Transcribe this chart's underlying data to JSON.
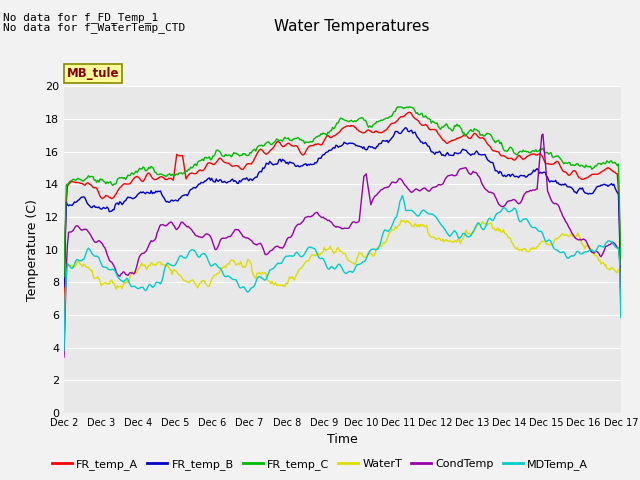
{
  "title": "Water Temperatures",
  "xlabel": "Time",
  "ylabel": "Temperature (C)",
  "ylim": [
    0,
    20
  ],
  "yticks": [
    0,
    2,
    4,
    6,
    8,
    10,
    12,
    14,
    16,
    18,
    20
  ],
  "xtick_labels": [
    "Dec 2",
    "Dec 3",
    "Dec 4",
    "Dec 5",
    "Dec 6",
    "Dec 7",
    "Dec 8",
    "Dec 9",
    "Dec 10",
    "Dec 11",
    "Dec 12",
    "Dec 13",
    "Dec 14",
    "Dec 15",
    "Dec 16",
    "Dec 17"
  ],
  "annotation_lines": [
    "No data for f_FD_Temp_1",
    "No data for f_WaterTemp_CTD"
  ],
  "box_label": "MB_tule",
  "box_color": "#ffff99",
  "box_text_color": "#880000",
  "series_colors": {
    "FR_temp_A": "#ff0000",
    "FR_temp_B": "#0000cc",
    "FR_temp_C": "#00bb00",
    "WaterT": "#dddd00",
    "CondTemp": "#9900aa",
    "MDTemp_A": "#00cccc"
  },
  "background_color": "#e8e8e8",
  "grid_color": "#ffffff",
  "fig_background": "#f2f2f2",
  "title_fontsize": 11,
  "axis_fontsize": 9,
  "tick_fontsize": 8,
  "legend_fontsize": 8
}
